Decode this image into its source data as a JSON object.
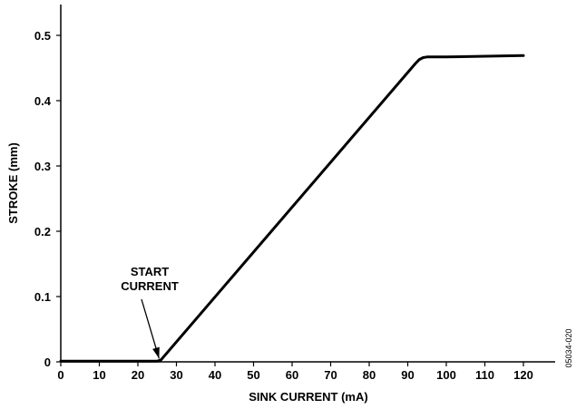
{
  "chart_data": {
    "type": "line",
    "title": "",
    "xlabel": "SINK CURRENT (mA)",
    "ylabel": "STROKE (mm)",
    "xlim": [
      0,
      125
    ],
    "ylim": [
      0,
      0.5
    ],
    "x_ticks": [
      0,
      10,
      20,
      30,
      40,
      50,
      60,
      70,
      80,
      90,
      100,
      110,
      120
    ],
    "y_ticks": [
      0,
      0.1,
      0.2,
      0.3,
      0.4,
      0.5
    ],
    "x_tick_labels": [
      "0",
      "10",
      "20",
      "30",
      "40",
      "50",
      "60",
      "70",
      "80",
      "90",
      "100",
      "110",
      "120"
    ],
    "y_tick_labels": [
      "0",
      "0.1",
      "0.2",
      "0.3",
      "0.4",
      "0.5"
    ],
    "grid": false,
    "series": [
      {
        "x": [
          0,
          25,
          26,
          92,
          93,
          94,
          95,
          100,
          120
        ],
        "y": [
          0.001,
          0.001,
          0.003,
          0.457,
          0.463,
          0.466,
          0.467,
          0.467,
          0.469
        ]
      }
    ],
    "annotations": [
      {
        "lines": [
          "START",
          "CURRENT"
        ],
        "target_x": 25.5,
        "target_y": 0.001
      }
    ],
    "figure_id": "05034-020"
  }
}
